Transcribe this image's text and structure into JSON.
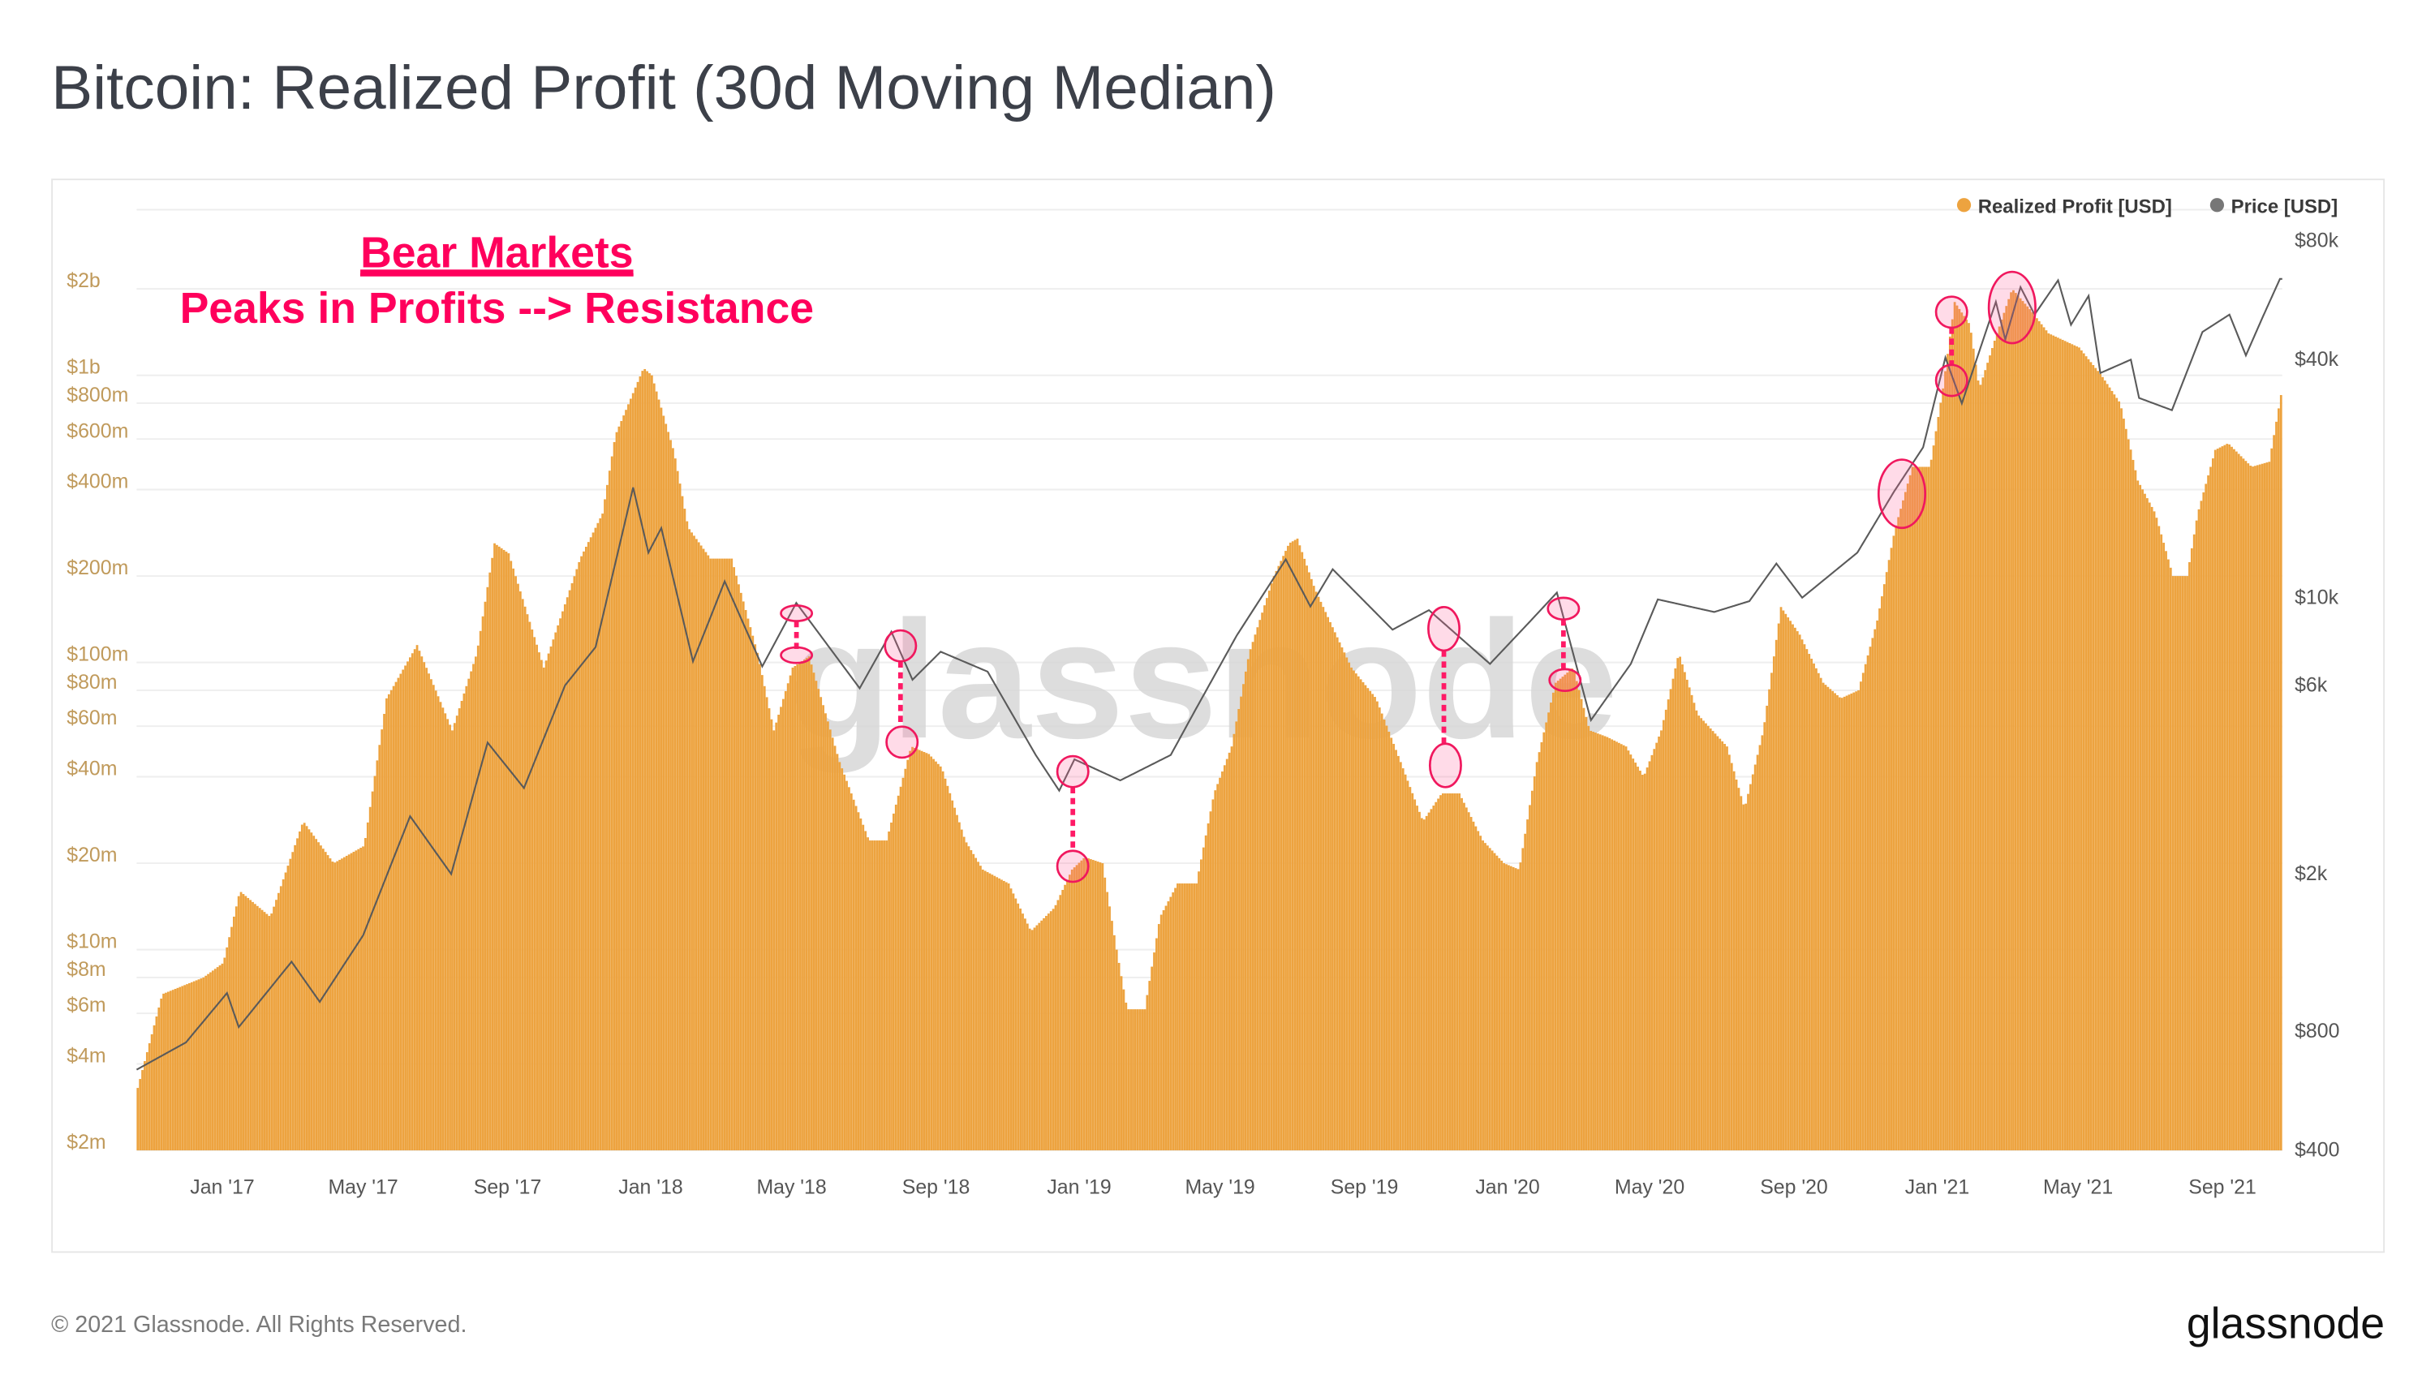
{
  "title": "Bitcoin: Realized Profit (30d Moving Median)",
  "annotation": {
    "line1": "Bear Markets",
    "line2": "Peaks in Profits --> Resistance",
    "color": "#ff005c"
  },
  "watermark": "glassnode",
  "footer": {
    "copyright": "© 2021 Glassnode. All Rights Reserved.",
    "logo": "glassnode"
  },
  "chart_data": {
    "type": "bar+line",
    "x_range": [
      "2016-10-20",
      "2021-10-22"
    ],
    "grid": true,
    "legend_placement": "top-right",
    "legend": [
      {
        "name": "Realized Profit [USD]",
        "color": "#eda33f"
      },
      {
        "name": "Price [USD]",
        "color": "#777777"
      }
    ],
    "x_ticks": [
      {
        "date": "2017-01-01",
        "label": "Jan '17"
      },
      {
        "date": "2017-05-01",
        "label": "May '17"
      },
      {
        "date": "2017-09-01",
        "label": "Sep '17"
      },
      {
        "date": "2018-01-01",
        "label": "Jan '18"
      },
      {
        "date": "2018-05-01",
        "label": "May '18"
      },
      {
        "date": "2018-09-01",
        "label": "Sep '18"
      },
      {
        "date": "2019-01-01",
        "label": "Jan '19"
      },
      {
        "date": "2019-05-01",
        "label": "May '19"
      },
      {
        "date": "2019-09-01",
        "label": "Sep '19"
      },
      {
        "date": "2020-01-01",
        "label": "Jan '20"
      },
      {
        "date": "2020-05-01",
        "label": "May '20"
      },
      {
        "date": "2020-09-01",
        "label": "Sep '20"
      },
      {
        "date": "2021-01-01",
        "label": "Jan '21"
      },
      {
        "date": "2021-05-01",
        "label": "May '21"
      },
      {
        "date": "2021-09-01",
        "label": "Sep '21"
      }
    ],
    "y_left": {
      "scale": "log",
      "range": [
        2000000,
        3700000000
      ],
      "ticks": [
        {
          "v": 2000000,
          "label": "$2m"
        },
        {
          "v": 4000000,
          "label": "$4m"
        },
        {
          "v": 6000000,
          "label": "$6m"
        },
        {
          "v": 8000000,
          "label": "$8m"
        },
        {
          "v": 10000000,
          "label": "$10m"
        },
        {
          "v": 20000000,
          "label": "$20m"
        },
        {
          "v": 40000000,
          "label": "$40m"
        },
        {
          "v": 60000000,
          "label": "$60m"
        },
        {
          "v": 80000000,
          "label": "$80m"
        },
        {
          "v": 100000000,
          "label": "$100m"
        },
        {
          "v": 200000000,
          "label": "$200m"
        },
        {
          "v": 400000000,
          "label": "$400m"
        },
        {
          "v": 600000000,
          "label": "$600m"
        },
        {
          "v": 800000000,
          "label": "$800m"
        },
        {
          "v": 1000000000,
          "label": "$1b"
        },
        {
          "v": 2000000000,
          "label": "$2b"
        }
      ]
    },
    "y_right": {
      "scale": "log",
      "range": [
        400,
        80000
      ],
      "ticks": [
        {
          "v": 400,
          "label": "$400"
        },
        {
          "v": 800,
          "label": "$800"
        },
        {
          "v": 2000,
          "label": "$2k"
        },
        {
          "v": 6000,
          "label": "$6k"
        },
        {
          "v": 10000,
          "label": "$10k"
        },
        {
          "v": 40000,
          "label": "$40k"
        },
        {
          "v": 80000,
          "label": "$80k"
        }
      ]
    },
    "series": [
      {
        "name": "Realized Profit [USD]",
        "type": "bar",
        "axis": "left",
        "points": [
          [
            "2016-10-20",
            3300000.0
          ],
          [
            "2016-11-10",
            7000000.0
          ],
          [
            "2016-12-15",
            8000000.0
          ],
          [
            "2017-01-01",
            9000000.0
          ],
          [
            "2017-01-15",
            16000000.0
          ],
          [
            "2017-02-10",
            13000000.0
          ],
          [
            "2017-03-10",
            28000000.0
          ],
          [
            "2017-04-05",
            20000000.0
          ],
          [
            "2017-05-01",
            23000000.0
          ],
          [
            "2017-05-20",
            75000000.0
          ],
          [
            "2017-06-15",
            115000000.0
          ],
          [
            "2017-07-15",
            58000000.0
          ],
          [
            "2017-08-05",
            108000000.0
          ],
          [
            "2017-08-20",
            260000000.0
          ],
          [
            "2017-09-01",
            240000000.0
          ],
          [
            "2017-10-01",
            96000000.0
          ],
          [
            "2017-11-01",
            230000000.0
          ],
          [
            "2017-11-20",
            330000000.0
          ],
          [
            "2017-12-01",
            620000000.0
          ],
          [
            "2017-12-25",
            1060000000.0
          ],
          [
            "2018-01-01",
            1000000000.0
          ],
          [
            "2018-01-20",
            540000000.0
          ],
          [
            "2018-02-01",
            295000000.0
          ],
          [
            "2018-02-20",
            230000000.0
          ],
          [
            "2018-03-10",
            230000000.0
          ],
          [
            "2018-04-01",
            108000000.0
          ],
          [
            "2018-04-15",
            58000000.0
          ],
          [
            "2018-05-01",
            96000000.0
          ],
          [
            "2018-05-15",
            105000000.0
          ],
          [
            "2018-06-10",
            45000000.0
          ],
          [
            "2018-07-05",
            24000000.0
          ],
          [
            "2018-07-20",
            24000000.0
          ],
          [
            "2018-08-10",
            51000000.0
          ],
          [
            "2018-08-25",
            48000000.0
          ],
          [
            "2018-09-05",
            43000000.0
          ],
          [
            "2018-09-25",
            24000000.0
          ],
          [
            "2018-10-10",
            19000000.0
          ],
          [
            "2018-11-01",
            17000000.0
          ],
          [
            "2018-11-20",
            11600000.0
          ],
          [
            "2018-12-10",
            14000000.0
          ],
          [
            "2018-12-25",
            19000000.0
          ],
          [
            "2019-01-05",
            21000000.0
          ],
          [
            "2019-01-20",
            20000000.0
          ],
          [
            "2019-02-01",
            10000000.0
          ],
          [
            "2019-02-10",
            6200000.0
          ],
          [
            "2019-02-25",
            6200000.0
          ],
          [
            "2019-03-10",
            13000000.0
          ],
          [
            "2019-03-25",
            17000000.0
          ],
          [
            "2019-04-10",
            17000000.0
          ],
          [
            "2019-04-25",
            35000000.0
          ],
          [
            "2019-05-10",
            51000000.0
          ],
          [
            "2019-05-25",
            108000000.0
          ],
          [
            "2019-06-15",
            200000000.0
          ],
          [
            "2019-06-28",
            260000000.0
          ],
          [
            "2019-07-05",
            270000000.0
          ],
          [
            "2019-07-20",
            180000000.0
          ],
          [
            "2019-08-05",
            130000000.0
          ],
          [
            "2019-08-20",
            96000000.0
          ],
          [
            "2019-09-10",
            75000000.0
          ],
          [
            "2019-10-01",
            45000000.0
          ],
          [
            "2019-10-20",
            28000000.0
          ],
          [
            "2019-11-05",
            35000000.0
          ],
          [
            "2019-11-20",
            35000000.0
          ],
          [
            "2019-12-10",
            24000000.0
          ],
          [
            "2019-12-28",
            20000000.0
          ],
          [
            "2020-01-10",
            19000000.0
          ],
          [
            "2020-01-25",
            45000000.0
          ],
          [
            "2020-02-10",
            85000000.0
          ],
          [
            "2020-02-25",
            96000000.0
          ],
          [
            "2020-03-10",
            58000000.0
          ],
          [
            "2020-03-25",
            55000000.0
          ],
          [
            "2020-04-10",
            51000000.0
          ],
          [
            "2020-04-25",
            40000000.0
          ],
          [
            "2020-05-10",
            58000000.0
          ],
          [
            "2020-05-25",
            108000000.0
          ],
          [
            "2020-06-10",
            66000000.0
          ],
          [
            "2020-07-05",
            51000000.0
          ],
          [
            "2020-07-20",
            31000000.0
          ],
          [
            "2020-08-05",
            58000000.0
          ],
          [
            "2020-08-20",
            156000000.0
          ],
          [
            "2020-09-05",
            125000000.0
          ],
          [
            "2020-09-25",
            85000000.0
          ],
          [
            "2020-10-10",
            75000000.0
          ],
          [
            "2020-10-25",
            80000000.0
          ],
          [
            "2020-11-10",
            140000000.0
          ],
          [
            "2020-11-25",
            290000000.0
          ],
          [
            "2020-12-10",
            480000000.0
          ],
          [
            "2020-12-25",
            480000000.0
          ],
          [
            "2021-01-05",
            900000000.0
          ],
          [
            "2021-01-15",
            1800000000.0
          ],
          [
            "2021-01-28",
            1500000000.0
          ],
          [
            "2021-02-05",
            900000000.0
          ],
          [
            "2021-02-20",
            1400000000.0
          ],
          [
            "2021-03-05",
            2000000000.0
          ],
          [
            "2021-03-20",
            1700000000.0
          ],
          [
            "2021-04-05",
            1400000000.0
          ],
          [
            "2021-05-01",
            1250000000.0
          ],
          [
            "2021-05-20",
            1000000000.0
          ],
          [
            "2021-06-05",
            800000000.0
          ],
          [
            "2021-06-20",
            430000000.0
          ],
          [
            "2021-07-05",
            330000000.0
          ],
          [
            "2021-07-20",
            200000000.0
          ],
          [
            "2021-08-01",
            200000000.0
          ],
          [
            "2021-08-10",
            330000000.0
          ],
          [
            "2021-08-25",
            550000000.0
          ],
          [
            "2021-09-05",
            580000000.0
          ],
          [
            "2021-09-25",
            480000000.0
          ],
          [
            "2021-10-10",
            500000000.0
          ],
          [
            "2021-10-22",
            950000000.0
          ]
        ]
      },
      {
        "name": "Price [USD]",
        "type": "line",
        "axis": "right",
        "points": [
          [
            "2016-10-20",
            640
          ],
          [
            "2016-12-01",
            750
          ],
          [
            "2017-01-05",
            1000
          ],
          [
            "2017-01-15",
            820
          ],
          [
            "2017-03-01",
            1200
          ],
          [
            "2017-03-25",
            950
          ],
          [
            "2017-05-01",
            1400
          ],
          [
            "2017-06-10",
            2800
          ],
          [
            "2017-07-15",
            2000
          ],
          [
            "2017-08-15",
            4300
          ],
          [
            "2017-09-15",
            3300
          ],
          [
            "2017-10-20",
            6000
          ],
          [
            "2017-11-15",
            7500
          ],
          [
            "2017-12-17",
            19000
          ],
          [
            "2017-12-30",
            13000
          ],
          [
            "2018-01-10",
            15000
          ],
          [
            "2018-02-06",
            6900
          ],
          [
            "2018-03-05",
            11000
          ],
          [
            "2018-04-06",
            6700
          ],
          [
            "2018-05-05",
            9700
          ],
          [
            "2018-06-28",
            5900
          ],
          [
            "2018-07-25",
            8200
          ],
          [
            "2018-08-12",
            6200
          ],
          [
            "2018-09-05",
            7300
          ],
          [
            "2018-10-15",
            6500
          ],
          [
            "2018-11-25",
            4000
          ],
          [
            "2018-12-15",
            3250
          ],
          [
            "2018-12-28",
            3900
          ],
          [
            "2019-02-05",
            3450
          ],
          [
            "2019-03-20",
            4000
          ],
          [
            "2019-04-10",
            5200
          ],
          [
            "2019-05-15",
            8000
          ],
          [
            "2019-06-26",
            12500
          ],
          [
            "2019-07-17",
            9500
          ],
          [
            "2019-08-05",
            11800
          ],
          [
            "2019-09-25",
            8300
          ],
          [
            "2019-10-26",
            9300
          ],
          [
            "2019-12-17",
            6800
          ],
          [
            "2020-01-20",
            8700
          ],
          [
            "2020-02-12",
            10300
          ],
          [
            "2020-03-12",
            4900
          ],
          [
            "2020-04-15",
            6800
          ],
          [
            "2020-05-08",
            9900
          ],
          [
            "2020-06-25",
            9200
          ],
          [
            "2020-07-25",
            9800
          ],
          [
            "2020-08-17",
            12200
          ],
          [
            "2020-09-08",
            10000
          ],
          [
            "2020-10-25",
            13000
          ],
          [
            "2020-11-25",
            18500
          ],
          [
            "2020-12-20",
            24000
          ],
          [
            "2021-01-08",
            40500
          ],
          [
            "2021-01-22",
            31000
          ],
          [
            "2021-02-20",
            56000
          ],
          [
            "2021-02-28",
            45000
          ],
          [
            "2021-03-13",
            61000
          ],
          [
            "2021-03-25",
            52000
          ],
          [
            "2021-04-14",
            63500
          ],
          [
            "2021-04-25",
            49000
          ],
          [
            "2021-05-10",
            58000
          ],
          [
            "2021-05-20",
            37000
          ],
          [
            "2021-06-15",
            40000
          ],
          [
            "2021-06-22",
            32000
          ],
          [
            "2021-07-20",
            29800
          ],
          [
            "2021-08-15",
            47000
          ],
          [
            "2021-09-07",
            52000
          ],
          [
            "2021-09-21",
            41000
          ],
          [
            "2021-10-05",
            51000
          ],
          [
            "2021-10-20",
            64000
          ]
        ]
      }
    ]
  }
}
